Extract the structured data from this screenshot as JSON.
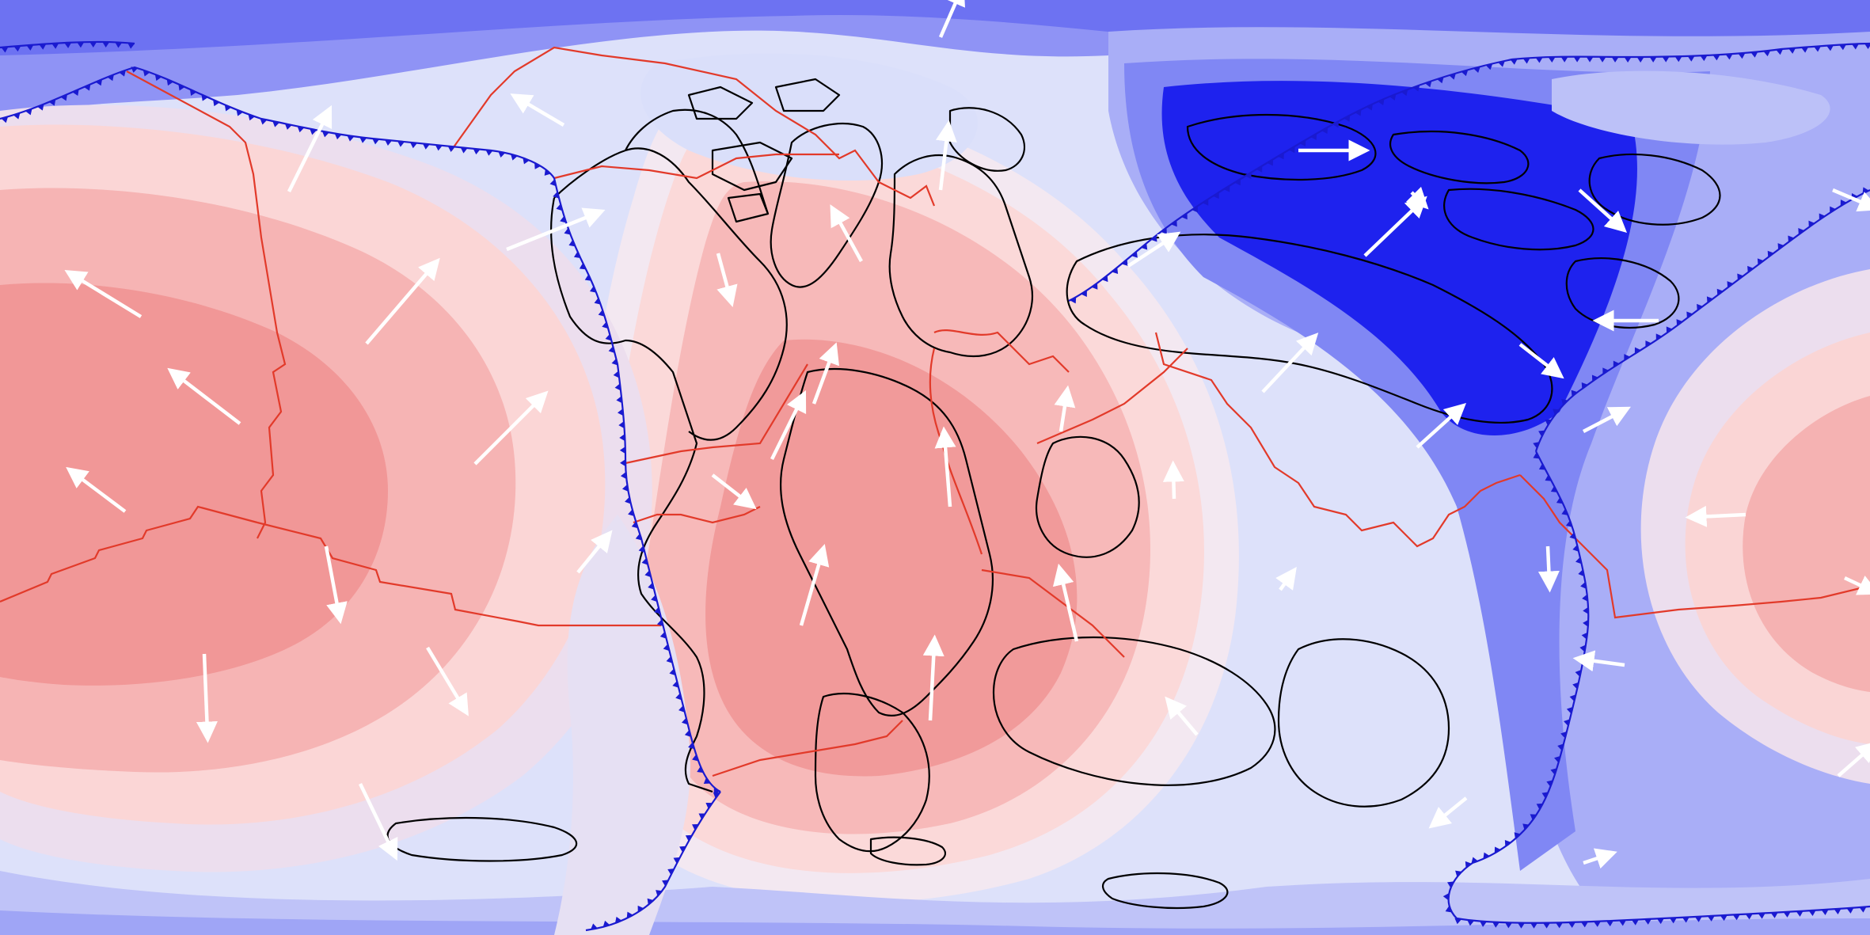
{
  "map": {
    "colors": {
      "field_blue_4": "#1f1ff0",
      "field_blue_3": "#6c6cf3",
      "field_blue_2": "#9c9cf6",
      "field_blue_1": "#c6c9f8",
      "field_neutral": "#e8eafb",
      "field_red_1": "#fbe1e1",
      "field_red_2": "#f8c2c2",
      "field_red_3": "#f09595",
      "coastline": "#000000",
      "ridge": "#e23a2a",
      "subduction": "#1a1ad0",
      "arrow": "#ffffff"
    },
    "layers": [
      "scalar-field",
      "coastlines",
      "ridge-boundaries",
      "subduction-zones",
      "plate-motion-arrows"
    ]
  }
}
